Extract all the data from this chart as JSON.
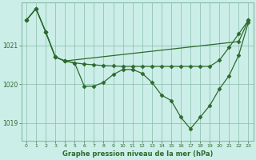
{
  "title": "Graphe pression niveau de la mer (hPa)",
  "background_color": "#cceee8",
  "grid_color": "#88bbaa",
  "line_color": "#2d6a2d",
  "marker_color": "#2d6a2d",
  "xlim": [
    -0.5,
    23.5
  ],
  "ylim": [
    1018.55,
    1022.1
  ],
  "yticks": [
    1019,
    1020,
    1021
  ],
  "xticks": [
    0,
    1,
    2,
    3,
    4,
    5,
    6,
    7,
    8,
    9,
    10,
    11,
    12,
    13,
    14,
    15,
    16,
    17,
    18,
    19,
    20,
    21,
    22,
    23
  ],
  "series1_x": [
    0,
    1,
    2,
    3,
    4,
    22,
    23
  ],
  "series1_y": [
    1021.65,
    1021.95,
    1021.35,
    1020.7,
    1020.6,
    1021.1,
    1021.65
  ],
  "series2_x": [
    0,
    1,
    2,
    3,
    4,
    5,
    6,
    7,
    8,
    9,
    10,
    11,
    12,
    13,
    14,
    15,
    16,
    17,
    18,
    19,
    20,
    21,
    22,
    23
  ],
  "series2_y": [
    1021.65,
    1021.95,
    1021.35,
    1020.7,
    1020.6,
    1020.55,
    1019.95,
    1019.95,
    1020.05,
    1020.25,
    1020.38,
    1020.38,
    1020.28,
    1020.05,
    1019.72,
    1019.58,
    1019.15,
    1018.85,
    1019.15,
    1019.45,
    1019.88,
    1020.22,
    1020.75,
    1021.6
  ],
  "series3_x": [
    0,
    1,
    2,
    3,
    4,
    5,
    6,
    7,
    8,
    9,
    10,
    11,
    12,
    13,
    14,
    15,
    16,
    17,
    18,
    19,
    20,
    21,
    22,
    23
  ],
  "series3_y": [
    1021.65,
    1021.95,
    1021.35,
    1020.7,
    1020.6,
    1020.55,
    1020.52,
    1020.5,
    1020.48,
    1020.47,
    1020.46,
    1020.46,
    1020.46,
    1020.46,
    1020.46,
    1020.46,
    1020.46,
    1020.46,
    1020.46,
    1020.46,
    1020.62,
    1020.95,
    1021.3,
    1021.65
  ]
}
